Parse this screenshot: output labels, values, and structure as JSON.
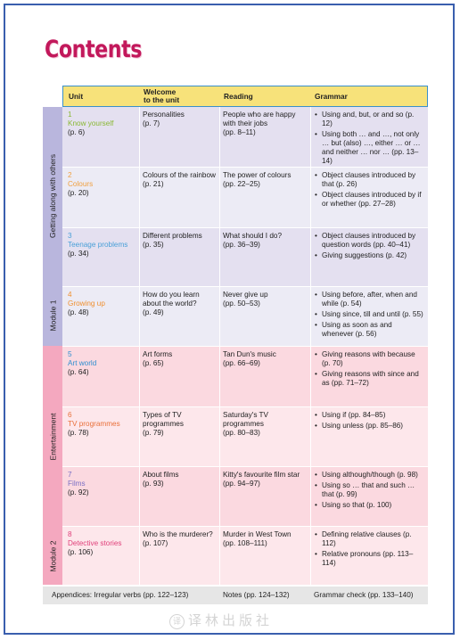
{
  "page_title": "Contents",
  "headers": [
    "Unit",
    "Welcome\nto the unit",
    "Reading",
    "Grammar"
  ],
  "sidebar": {
    "group1": "Getting along with others",
    "module1": "Module 1",
    "group2": "Entertainment",
    "module2": "Module 2"
  },
  "units": [
    {
      "num": "1",
      "name": "Know yourself",
      "page": "(p. 6)",
      "color": "#8ab834",
      "welcome": "Personalities\n(p. 7)",
      "reading": "People who are happy with their jobs\n(pp. 8–11)",
      "grammar": [
        "Using and, but, or and so (p. 12)",
        "Using both … and …, not only … but (also) …, either … or … and neither … nor … (pp. 13–14)"
      ]
    },
    {
      "num": "2",
      "name": "Colours",
      "page": "(p. 20)",
      "color": "#f0a040",
      "welcome": "Colours of the rainbow\n(p. 21)",
      "reading": "The power of colours\n(pp. 22–25)",
      "grammar": [
        "Object clauses introduced by that (p. 26)",
        "Object clauses introduced by if or whether (pp. 27–28)"
      ]
    },
    {
      "num": "3",
      "name": "Teenage problems",
      "page": "(p. 34)",
      "color": "#4aa0d8",
      "welcome": "Different problems\n(p. 35)",
      "reading": "What should I do?\n(pp. 36–39)",
      "grammar": [
        "Object clauses introduced by question words (pp. 40–41)",
        "Giving suggestions (p. 42)"
      ]
    },
    {
      "num": "4",
      "name": "Growing up",
      "page": "(p. 48)",
      "color": "#f09030",
      "welcome": "How do you learn about the world?\n(p. 49)",
      "reading": "Never give up\n(pp. 50–53)",
      "grammar": [
        "Using before, after, when and while (p. 54)",
        "Using since, till and until (p. 55)",
        "Using as soon as and whenever (p. 56)"
      ]
    },
    {
      "num": "5",
      "name": "Art world",
      "page": "(p. 64)",
      "color": "#2f8fd0",
      "welcome": "Art forms\n(p. 65)",
      "reading": "Tan Dun's music\n(pp. 66–69)",
      "grammar": [
        "Giving reasons with because (p. 70)",
        "Giving reasons with since and as (pp. 71–72)"
      ]
    },
    {
      "num": "6",
      "name": "TV programmes",
      "page": "(p. 78)",
      "color": "#e8703a",
      "welcome": "Types of TV programmes\n(p. 79)",
      "reading": "Saturday's TV programmes\n(pp. 80–83)",
      "grammar": [
        "Using if (pp. 84–85)",
        "Using unless (pp. 85–86)"
      ]
    },
    {
      "num": "7",
      "name": "Films",
      "page": "(p. 92)",
      "color": "#7a6fc4",
      "welcome": "About films\n(p. 93)",
      "reading": "Kitty's favourite film star\n(pp. 94–97)",
      "grammar": [
        "Using although/though (p. 98)",
        "Using so … that and such … that (p. 99)",
        "Using so that (p. 100)"
      ]
    },
    {
      "num": "8",
      "name": "Detective stories",
      "page": "(p. 106)",
      "color": "#e0407a",
      "welcome": "Who is the murderer?\n(p. 107)",
      "reading": "Murder in West Town\n(pp. 108–111)",
      "grammar": [
        "Defining relative clauses (p. 112)",
        "Relative pronouns (pp. 113–114)"
      ]
    }
  ],
  "footer": {
    "appendices": "Appendices: Irregular verbs (pp. 122–123)",
    "notes": "Notes (pp. 124–132)",
    "grammar_check": "Grammar check (pp. 133–140)"
  },
  "watermark": "译林出版社",
  "colors": {
    "title": "#c2185b",
    "header": "#f7e27a",
    "module1_bg": "#e4e0f0",
    "module2_bg": "#fbd9e0",
    "sidebar1": "#b9b6dd",
    "sidebar2": "#f4a8bf"
  }
}
